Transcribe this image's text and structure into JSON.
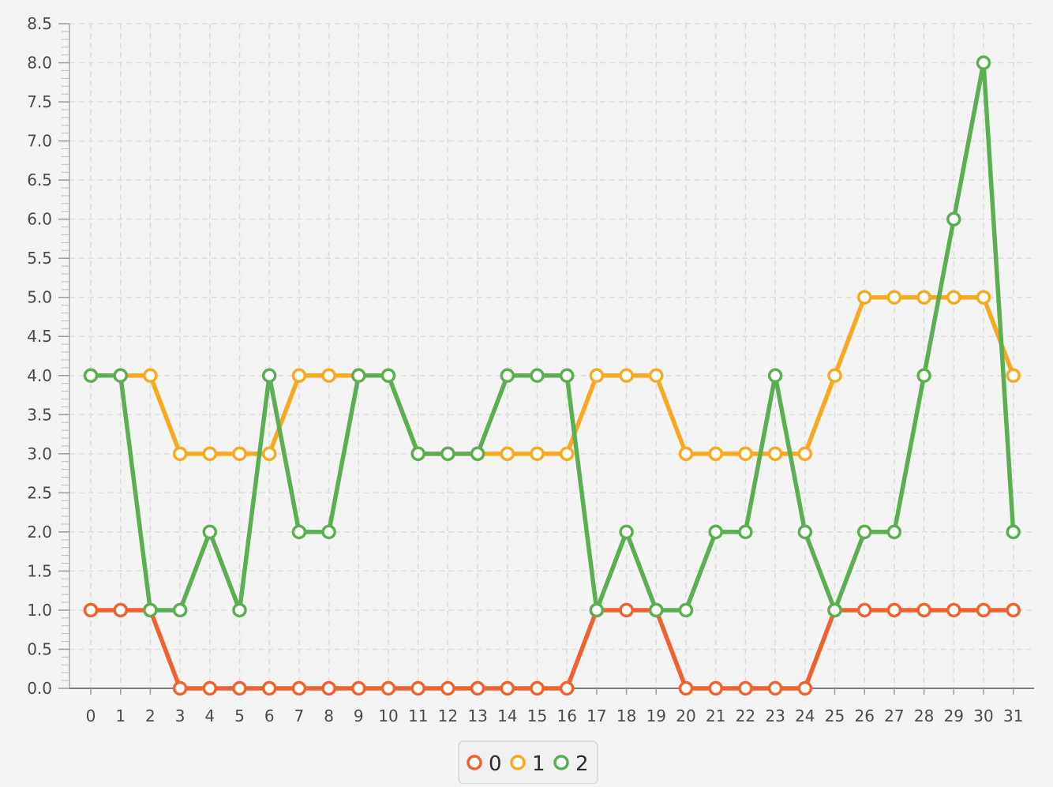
{
  "chart_data": {
    "type": "line",
    "title": "",
    "xlabel": "",
    "ylabel": "",
    "x": [
      0,
      1,
      2,
      3,
      4,
      5,
      6,
      7,
      8,
      9,
      10,
      11,
      12,
      13,
      14,
      15,
      16,
      17,
      18,
      19,
      20,
      21,
      22,
      23,
      24,
      25,
      26,
      27,
      28,
      29,
      30,
      31
    ],
    "ylim": [
      0,
      8.5
    ],
    "y_ticks": [
      0.0,
      0.5,
      1.0,
      1.5,
      2.0,
      2.5,
      3.0,
      3.5,
      4.0,
      4.5,
      5.0,
      5.5,
      6.0,
      6.5,
      7.0,
      7.5,
      8.0,
      8.5
    ],
    "y_tick_labels": [
      "0.0",
      "0.5",
      "1.0",
      "1.5",
      "2.0",
      "2.5",
      "3.0",
      "3.5",
      "4.0",
      "4.5",
      "5.0",
      "5.5",
      "6.0",
      "6.5",
      "7.0",
      "7.5",
      "8.0",
      "8.5"
    ],
    "x_tick_labels": [
      "0",
      "1",
      "2",
      "3",
      "4",
      "5",
      "6",
      "7",
      "8",
      "9",
      "10",
      "11",
      "12",
      "13",
      "14",
      "15",
      "16",
      "17",
      "18",
      "19",
      "20",
      "21",
      "22",
      "23",
      "24",
      "25",
      "26",
      "27",
      "28",
      "29",
      "30",
      "31"
    ],
    "grid": true,
    "legend_position": "bottom-center",
    "series": [
      {
        "name": "0",
        "color": "#f0622d",
        "values": [
          1,
          1,
          1,
          0,
          0,
          0,
          0,
          0,
          0,
          0,
          0,
          0,
          0,
          0,
          0,
          0,
          0,
          1,
          1,
          1,
          0,
          0,
          0,
          0,
          0,
          1,
          1,
          1,
          1,
          1,
          1,
          1
        ]
      },
      {
        "name": "1",
        "color": "#f8a91f",
        "values": [
          4,
          4,
          4,
          3,
          3,
          3,
          3,
          4,
          4,
          4,
          4,
          3,
          3,
          3,
          3,
          3,
          3,
          4,
          4,
          4,
          3,
          3,
          3,
          3,
          3,
          4,
          5,
          5,
          5,
          5,
          5,
          4
        ]
      },
      {
        "name": "2",
        "color": "#5ab050",
        "values": [
          4,
          4,
          1,
          1,
          2,
          1,
          4,
          2,
          2,
          4,
          4,
          3,
          3,
          3,
          4,
          4,
          4,
          1,
          2,
          1,
          1,
          2,
          2,
          4,
          2,
          1,
          2,
          2,
          4,
          6,
          8,
          2
        ]
      }
    ]
  }
}
